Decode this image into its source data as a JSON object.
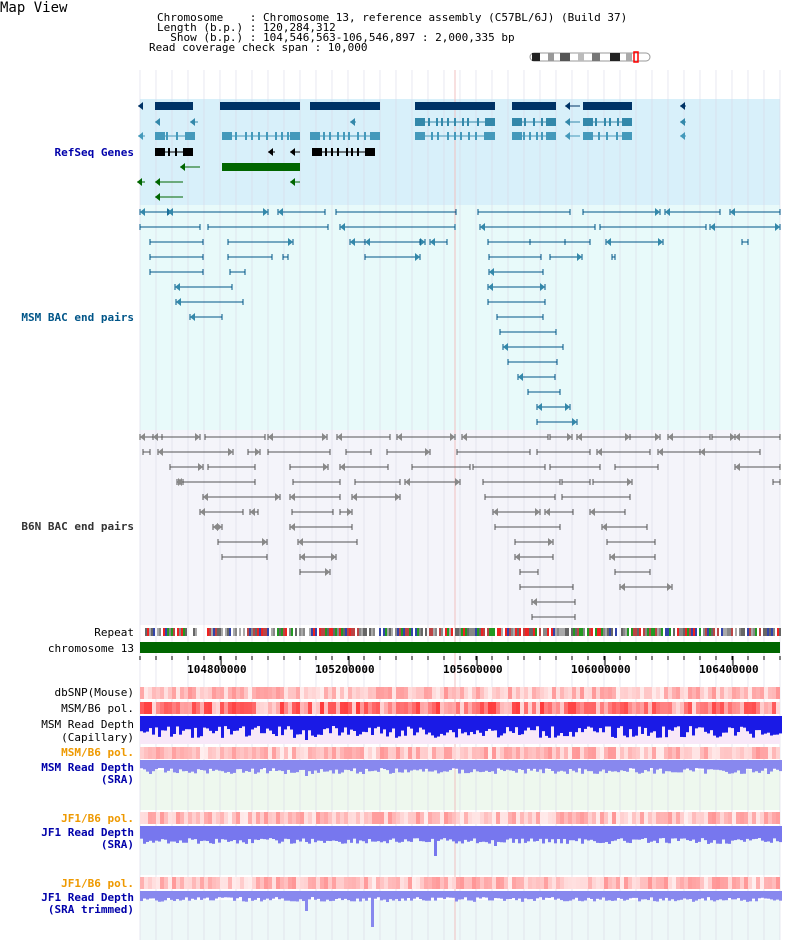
{
  "page": {
    "title": "Map View"
  },
  "info": [
    {
      "key": "Chromosome",
      "value": "Chromosome 13, reference assembly (C57BL/6J) (Build 37)"
    },
    {
      "key": "Length (b.p.)",
      "value": "120,284,312"
    },
    {
      "key": "Show (b.p.)",
      "value": "104,546,563-106,546,897 : 2,000,335 bp"
    },
    {
      "key": "Read coverage check span",
      "value": "10,000"
    }
  ],
  "info_lines": [
    "Chromosome    : Chromosome 13, reference assembly (C57BL/6J) (Build 37)",
    "Length (b.p.) : 120,284,312",
    "  Show (b.p.) : 104,546,563-106,546,897 : 2,000,335 bp",
    "Read coverage check span : 10,000"
  ],
  "tracks": {
    "refseq": {
      "label": "RefSeq Genes",
      "color": "#0000aa"
    },
    "msm_bac": {
      "label": "MSM BAC end pairs",
      "color": "#005588"
    },
    "b6n_bac": {
      "label": "B6N BAC end pairs",
      "color": "#333333"
    },
    "repeat": {
      "label": "Repeat"
    },
    "chromosome": {
      "label": "chromosome 13",
      "color": "#006600"
    },
    "dbsnp": {
      "label": "dbSNP(Mouse)"
    },
    "msm_b6_pol": {
      "label": "MSM/B6 pol."
    },
    "msm_depth_cap": {
      "label_line1": "MSM Read Depth",
      "label_line2": "(Capillary)"
    },
    "msm_b6_pol2": {
      "label": "MSM/B6 pol.",
      "color": "#ee9900"
    },
    "msm_depth_sra": {
      "label_line1": "MSM Read Depth",
      "label_line2": "(SRA)",
      "color": "#0000aa"
    },
    "jf1_b6_pol": {
      "label": "JF1/B6 pol.",
      "color": "#ee9900"
    },
    "jf1_depth_sra": {
      "label_line1": "JF1 Read Depth",
      "label_line2": "(SRA)",
      "color": "#0000aa"
    },
    "jf1_b6_pol2": {
      "label": "JF1/B6 pol.",
      "color": "#ee9900"
    },
    "jf1_depth_trim": {
      "label_line1": "JF1 Read Depth",
      "label_line2": "(SRA trimmed)",
      "color": "#0000aa"
    }
  },
  "axis": {
    "start": 104546563,
    "end": 106546897,
    "ticks": [
      "104800000",
      "105200000",
      "105600000",
      "106000000",
      "106400000"
    ],
    "tick_values": [
      104800000,
      105200000,
      105600000,
      106000000,
      106400000
    ]
  }
}
